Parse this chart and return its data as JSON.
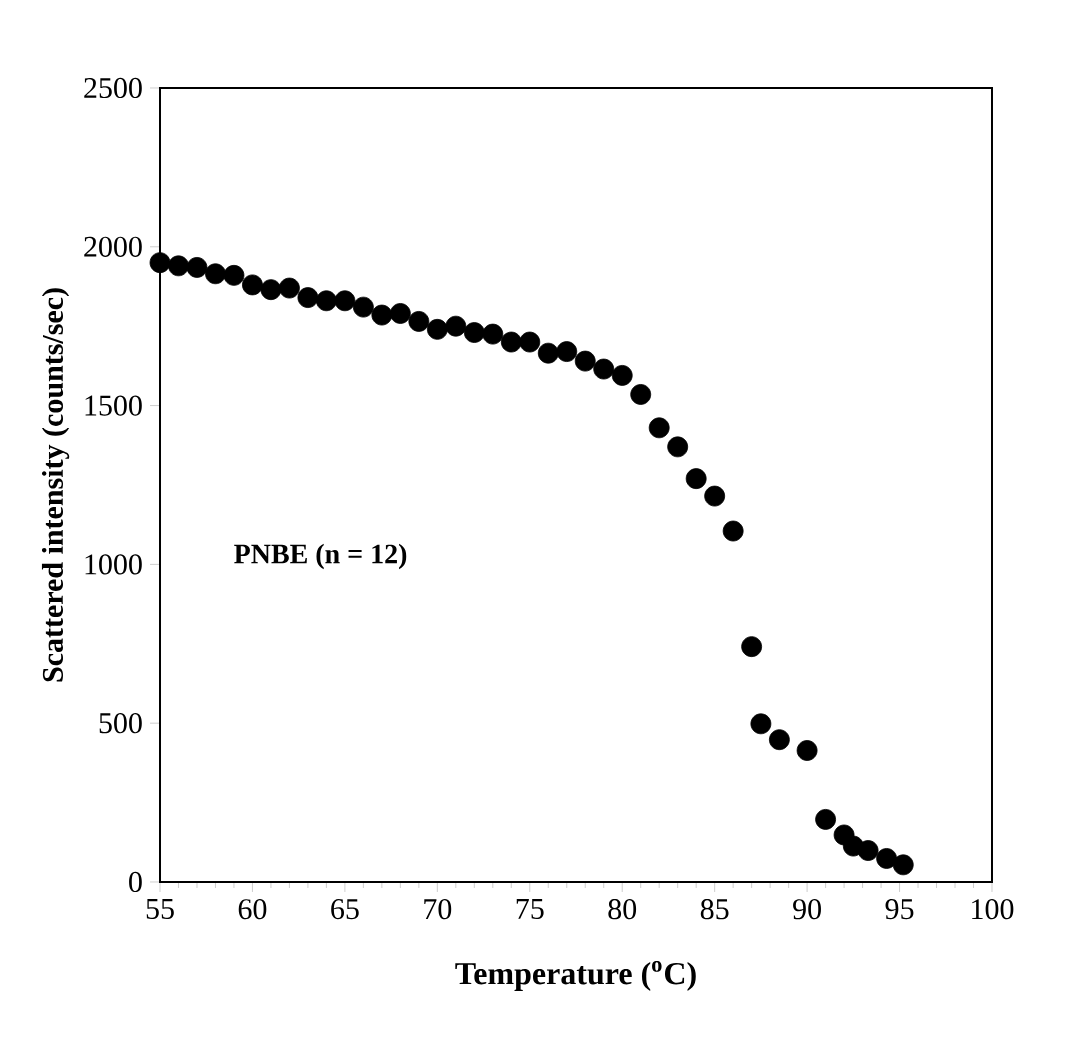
{
  "chart_data": {
    "type": "scatter",
    "xlabel": "Temperature ($^{o}$C)",
    "ylabel": "Scattered intensity (counts/sec)",
    "annotations": [
      "PNBE (n = 12)"
    ],
    "xlim": [
      55,
      100
    ],
    "xticks": [
      55,
      60,
      65,
      70,
      75,
      80,
      85,
      90,
      95,
      100
    ],
    "ylim": [
      0,
      2500
    ],
    "yticks": [
      0,
      500,
      1000,
      1500,
      2000,
      2500
    ],
    "marker": "circle",
    "grid": false,
    "series": [
      {
        "color": "#000000",
        "x": [
          55,
          56,
          57,
          58,
          59,
          60,
          61,
          62,
          63,
          64,
          65,
          66,
          67,
          68,
          69,
          70,
          71,
          72,
          73,
          74,
          75,
          76,
          77,
          78,
          79,
          80,
          81,
          82,
          83,
          84,
          85,
          86,
          87,
          87.5,
          88.5,
          90,
          91,
          92,
          92.5,
          93.3,
          94.3,
          95.2
        ],
        "values": [
          1950,
          1940,
          1935,
          1915,
          1910,
          1880,
          1865,
          1870,
          1840,
          1830,
          1830,
          1810,
          1785,
          1790,
          1765,
          1740,
          1750,
          1730,
          1725,
          1700,
          1700,
          1665,
          1670,
          1640,
          1615,
          1595,
          1535,
          1430,
          1370,
          1270,
          1215,
          1105,
          741,
          498,
          448,
          414,
          197,
          148,
          113,
          99,
          74,
          54
        ]
      }
    ]
  }
}
